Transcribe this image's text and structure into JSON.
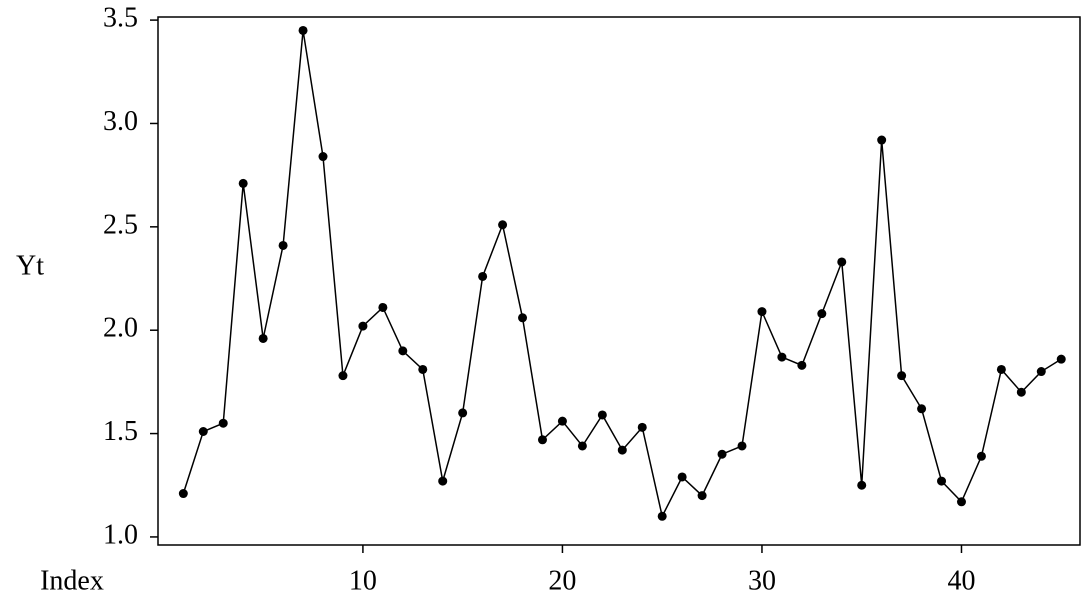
{
  "chart_data": {
    "type": "line",
    "xlabel": "Index",
    "ylabel": "Yt",
    "x": [
      1,
      2,
      3,
      4,
      5,
      6,
      7,
      8,
      9,
      10,
      11,
      12,
      13,
      14,
      15,
      16,
      17,
      18,
      19,
      20,
      21,
      22,
      23,
      24,
      25,
      26,
      27,
      28,
      29,
      30,
      31,
      32,
      33,
      34,
      35,
      36,
      37,
      38,
      39,
      40,
      41,
      42,
      43,
      44,
      45
    ],
    "series": [
      {
        "color": "#000000",
        "values": [
          1.21,
          1.51,
          1.55,
          2.71,
          1.96,
          2.41,
          3.45,
          2.84,
          1.78,
          2.02,
          2.11,
          1.9,
          1.81,
          1.27,
          1.6,
          2.26,
          2.51,
          2.06,
          1.47,
          1.56,
          1.44,
          1.59,
          1.42,
          1.53,
          1.1,
          1.29,
          1.2,
          1.4,
          1.44,
          2.09,
          1.87,
          1.83,
          2.08,
          2.33,
          1.25,
          2.92,
          1.78,
          1.62,
          1.27,
          1.17,
          1.39,
          1.81,
          1.7,
          1.8,
          1.86
        ]
      }
    ],
    "xlim": [
      -0.27,
      45.94
    ],
    "ylim": [
      0.961,
      3.515
    ],
    "xticks": [
      10,
      20,
      30,
      40
    ],
    "yticks": [
      {
        "value": 1.0,
        "label": "1.0"
      },
      {
        "value": 1.5,
        "label": "1.5"
      },
      {
        "value": 2.0,
        "label": "2.0"
      },
      {
        "value": 2.5,
        "label": "2.5"
      },
      {
        "value": 3.0,
        "label": "3.0"
      },
      {
        "value": 3.5,
        "label": "3.5"
      }
    ]
  }
}
